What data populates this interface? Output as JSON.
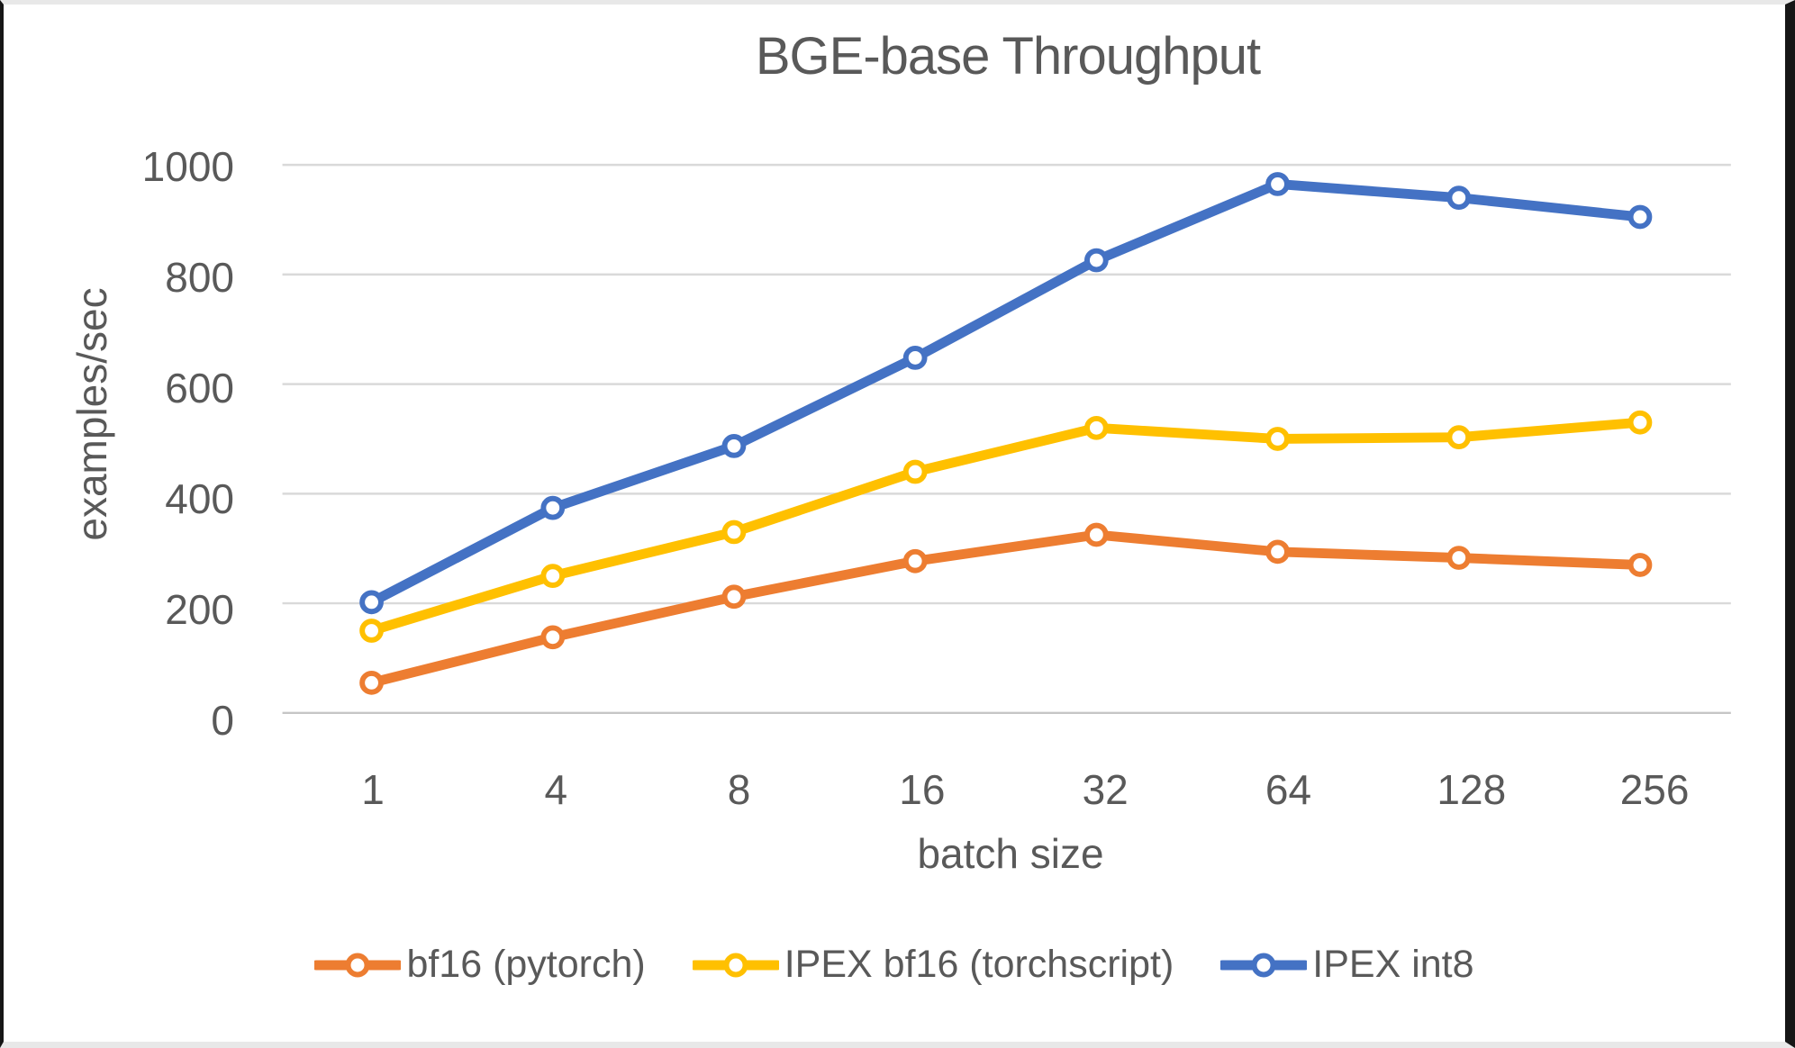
{
  "chart_data": {
    "type": "line",
    "title": "BGE-base Throughput",
    "xlabel": "batch size",
    "ylabel": "examples/sec",
    "categories": [
      "1",
      "4",
      "8",
      "16",
      "32",
      "64",
      "128",
      "256"
    ],
    "y_ticks": [
      0,
      200,
      400,
      600,
      800,
      1000
    ],
    "ylim": [
      0,
      1000
    ],
    "grid": true,
    "marker_style": "open-circle",
    "legend_position": "bottom",
    "colors": {
      "gridline": "#d9d9d9",
      "axis_line": "#c6c6c6",
      "text": "#595959"
    },
    "series": [
      {
        "name": "bf16 (pytorch)",
        "color": "#ED7D31",
        "values": [
          55,
          138,
          212,
          277,
          325,
          294,
          283,
          270
        ]
      },
      {
        "name": "IPEX bf16 (torchscript)",
        "color": "#FFC000",
        "values": [
          150,
          250,
          330,
          440,
          520,
          500,
          503,
          530
        ]
      },
      {
        "name": "IPEX int8",
        "color": "#4472C4",
        "values": [
          202,
          374,
          487,
          648,
          826,
          965,
          940,
          905
        ]
      }
    ]
  }
}
